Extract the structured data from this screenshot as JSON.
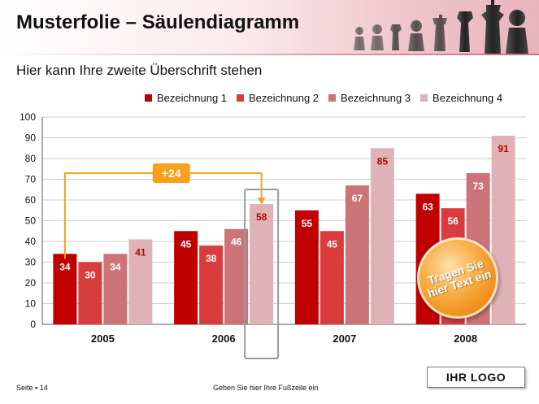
{
  "header": {
    "title": "Musterfolie – Säulendiagramm",
    "subtitle": "Hier kann Ihre zweite Überschrift stehen"
  },
  "colors": {
    "series1": "#c00000",
    "series2": "#d83c3c",
    "series3": "#cc7378",
    "series4": "#dfb2b8",
    "highlight": "#f5a21a"
  },
  "chart_data": {
    "type": "bar",
    "categories": [
      "2005",
      "2006",
      "2007",
      "2008"
    ],
    "series": [
      {
        "name": "Bezeichnung 1",
        "values": [
          34,
          45,
          55,
          63
        ]
      },
      {
        "name": "Bezeichnung 2",
        "values": [
          30,
          38,
          45,
          56
        ]
      },
      {
        "name": "Bezeichnung 3",
        "values": [
          34,
          46,
          67,
          73
        ]
      },
      {
        "name": "Bezeichnung 4",
        "values": [
          41,
          58,
          85,
          91
        ]
      }
    ],
    "ylim": [
      0,
      100
    ],
    "yticks": [
      0,
      10,
      20,
      30,
      40,
      50,
      60,
      70,
      80,
      90,
      100
    ],
    "grid": true,
    "legend": "top",
    "annotation": {
      "label": "+24",
      "from": {
        "category": "2005",
        "series": "Bezeichnung 1",
        "value": 34
      },
      "to": {
        "category": "2006",
        "series": "Bezeichnung 4",
        "value": 58
      }
    }
  },
  "badge": {
    "text": "Tragen Sie hier Text ein"
  },
  "footer": {
    "page": "Seite ▪ 14",
    "text": "Geben Sie hier Ihre Fußzeile ein",
    "logo": "IHR LOGO"
  }
}
